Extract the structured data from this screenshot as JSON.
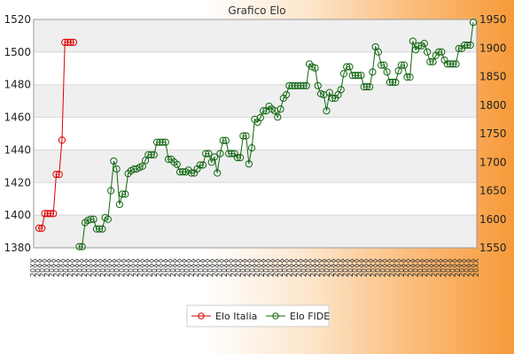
{
  "chart_data": {
    "type": "line",
    "title": "Grafico Elo",
    "legend_position": "bottom",
    "grid": true,
    "y_left": {
      "min": 1380,
      "max": 1520,
      "ticks": [
        1380,
        1400,
        1420,
        1440,
        1460,
        1480,
        1500,
        1520
      ]
    },
    "y_right": {
      "min": 1550,
      "max": 1950,
      "ticks": [
        1550,
        1600,
        1650,
        1700,
        1750,
        1800,
        1850,
        1900,
        1950
      ]
    },
    "x_date_label": "20XX",
    "series": [
      {
        "name": "Elo Italia",
        "color": "#dd0000",
        "axis": "left",
        "values": [
          1392,
          1392,
          1401,
          1401,
          1401,
          1401,
          1425,
          1425,
          1446,
          1506,
          1506,
          1506,
          1506
        ]
      },
      {
        "name": "Elo FIDE",
        "color": "#116611",
        "axis": "right",
        "values": [
          null,
          null,
          null,
          null,
          null,
          null,
          null,
          null,
          null,
          null,
          null,
          null,
          null,
          null,
          1552,
          1552,
          1594,
          1598,
          1600,
          1600,
          1583,
          1583,
          1583,
          1603,
          1600,
          1650,
          1702,
          1688,
          1626,
          1644,
          1644,
          1680,
          1685,
          1688,
          1688,
          1691,
          1693,
          1703,
          1713,
          1713,
          1713,
          1735,
          1735,
          1735,
          1735,
          1705,
          1705,
          1700,
          1696,
          1683,
          1683,
          1683,
          1686,
          1681,
          1681,
          1688,
          1695,
          1695,
          1715,
          1715,
          1700,
          1709,
          1681,
          1715,
          1738,
          1738,
          1715,
          1715,
          1715,
          1708,
          1708,
          1746,
          1746,
          1697,
          1725,
          1775,
          1770,
          1778,
          1790,
          1790,
          1798,
          1793,
          1790,
          1779,
          1793,
          1812,
          1818,
          1834,
          1834,
          1834,
          1834,
          1834,
          1834,
          1834,
          1872,
          1867,
          1865,
          1834,
          1820,
          1818,
          1790,
          1822,
          1812,
          1812,
          1818,
          1827,
          1855,
          1867,
          1867,
          1852,
          1852,
          1852,
          1852,
          1832,
          1832,
          1832,
          1858,
          1902,
          1893,
          1870,
          1870,
          1858,
          1840,
          1840,
          1840,
          1860,
          1870,
          1870,
          1849,
          1849,
          1912,
          1897,
          1904,
          1904,
          1908,
          1893,
          1876,
          1876,
          1887,
          1893,
          1893,
          1879,
          1872,
          1872,
          1872,
          1872,
          1899,
          1899,
          1905,
          1905,
          1905,
          1945
        ]
      }
    ]
  }
}
